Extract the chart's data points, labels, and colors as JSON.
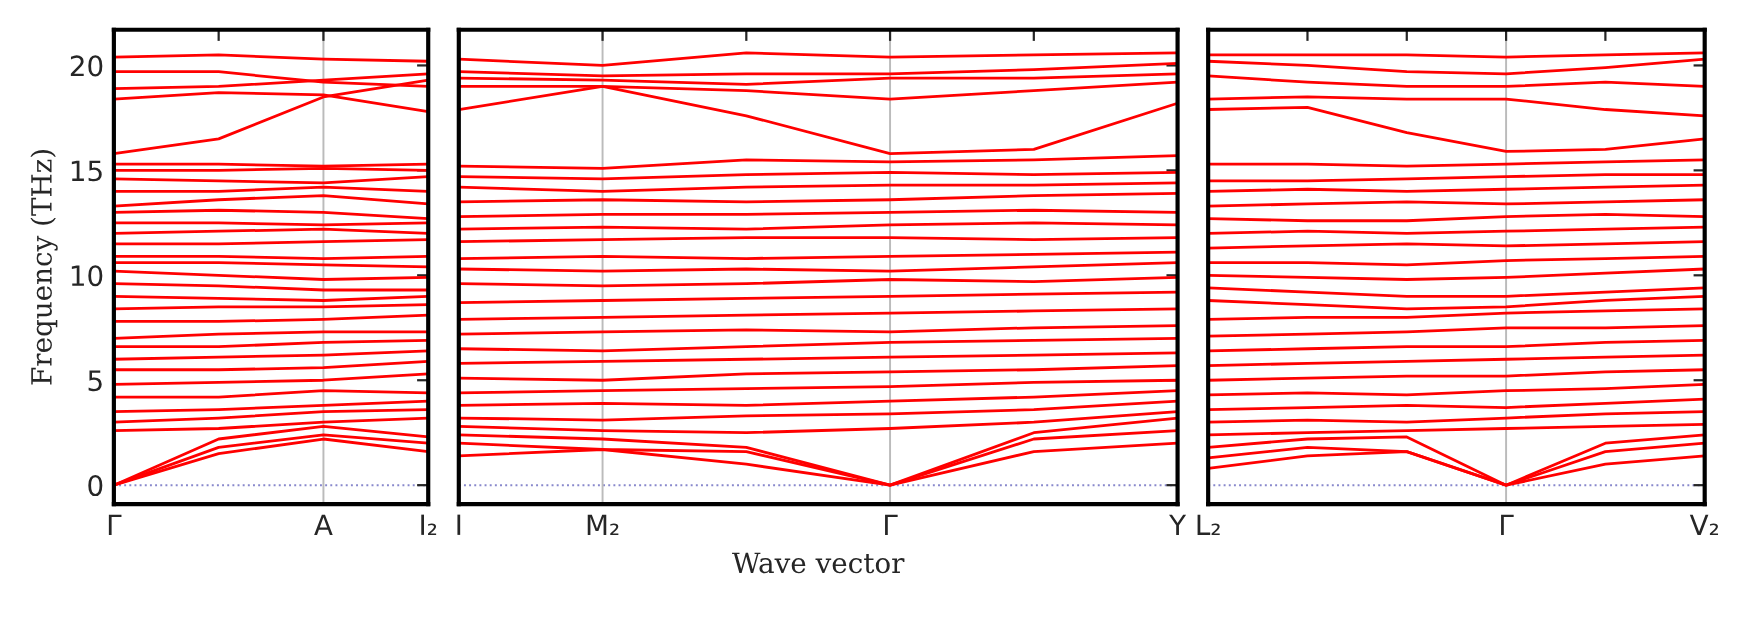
{
  "chart_data": [
    {
      "type": "line",
      "ylabel": "Frequency (THz)",
      "categories": [
        "Γ",
        null,
        "A",
        "I₂"
      ],
      "ylim": [
        -0.9,
        21.7
      ],
      "yticks": [
        0,
        5,
        10,
        15,
        20
      ],
      "line_style": "solid",
      "marker": "none",
      "ref_lines": [
        {
          "axis": "y",
          "value": 0,
          "color": "#8888cc",
          "line_style": "dotted"
        },
        {
          "axis": "x",
          "value": "A",
          "color": "#bbbbbb",
          "line_style": "solid"
        }
      ],
      "series": [
        {
          "color": "#ff0000",
          "values": [
            0,
            1.5,
            2.2,
            1.6
          ]
        },
        {
          "color": "#ff0000",
          "values": [
            0,
            1.8,
            2.4,
            2.0
          ]
        },
        {
          "color": "#ff0000",
          "values": [
            0,
            2.2,
            2.8,
            2.3
          ]
        },
        {
          "color": "#ff0000",
          "values": [
            2.6,
            2.7,
            3.0,
            3.2
          ]
        },
        {
          "color": "#ff0000",
          "values": [
            3.0,
            3.2,
            3.5,
            3.6
          ]
        },
        {
          "color": "#ff0000",
          "values": [
            3.5,
            3.6,
            3.8,
            4.0
          ]
        },
        {
          "color": "#ff0000",
          "values": [
            4.2,
            4.2,
            4.5,
            4.4
          ]
        },
        {
          "color": "#ff0000",
          "values": [
            4.8,
            4.9,
            5.0,
            5.3
          ]
        },
        {
          "color": "#ff0000",
          "values": [
            5.5,
            5.5,
            5.6,
            5.9
          ]
        },
        {
          "color": "#ff0000",
          "values": [
            6.0,
            6.1,
            6.2,
            6.4
          ]
        },
        {
          "color": "#ff0000",
          "values": [
            6.6,
            6.6,
            6.8,
            6.9
          ]
        },
        {
          "color": "#ff0000",
          "values": [
            7.0,
            7.2,
            7.3,
            7.3
          ]
        },
        {
          "color": "#ff0000",
          "values": [
            7.8,
            7.8,
            7.9,
            8.1
          ]
        },
        {
          "color": "#ff0000",
          "values": [
            8.4,
            8.5,
            8.5,
            8.6
          ]
        },
        {
          "color": "#ff0000",
          "values": [
            9.0,
            8.9,
            8.8,
            9.0
          ]
        },
        {
          "color": "#ff0000",
          "values": [
            9.6,
            9.5,
            9.3,
            9.3
          ]
        },
        {
          "color": "#ff0000",
          "values": [
            10.2,
            10.0,
            9.8,
            9.9
          ]
        },
        {
          "color": "#ff0000",
          "values": [
            10.6,
            10.6,
            10.5,
            10.4
          ]
        },
        {
          "color": "#ff0000",
          "values": [
            10.9,
            10.9,
            10.8,
            10.9
          ]
        },
        {
          "color": "#ff0000",
          "values": [
            11.5,
            11.5,
            11.6,
            11.7
          ]
        },
        {
          "color": "#ff0000",
          "values": [
            12.0,
            12.1,
            12.2,
            12.0
          ]
        },
        {
          "color": "#ff0000",
          "values": [
            12.5,
            12.5,
            12.4,
            12.5
          ]
        },
        {
          "color": "#ff0000",
          "values": [
            13.0,
            13.1,
            13.0,
            12.7
          ]
        },
        {
          "color": "#ff0000",
          "values": [
            13.3,
            13.6,
            13.8,
            13.4
          ]
        },
        {
          "color": "#ff0000",
          "values": [
            14.0,
            14.0,
            14.2,
            14.0
          ]
        },
        {
          "color": "#ff0000",
          "values": [
            14.6,
            14.5,
            14.4,
            14.7
          ]
        },
        {
          "color": "#ff0000",
          "values": [
            15.0,
            15.0,
            15.1,
            15.0
          ]
        },
        {
          "color": "#ff0000",
          "values": [
            15.3,
            15.3,
            15.2,
            15.3
          ]
        },
        {
          "color": "#ff0000",
          "values": [
            15.8,
            16.5,
            18.5,
            19.3
          ]
        },
        {
          "color": "#ff0000",
          "values": [
            18.4,
            18.7,
            18.6,
            17.8
          ]
        },
        {
          "color": "#ff0000",
          "values": [
            18.9,
            19.0,
            19.3,
            19.6
          ]
        },
        {
          "color": "#ff0000",
          "values": [
            19.7,
            19.7,
            19.2,
            19.0
          ]
        },
        {
          "color": "#ff0000",
          "values": [
            20.4,
            20.5,
            20.3,
            20.2
          ]
        }
      ]
    },
    {
      "type": "line",
      "xlabel": "Wave vector",
      "categories": [
        "I",
        "M₂",
        null,
        "Γ",
        null,
        "Y"
      ],
      "ylim": [
        -0.9,
        21.7
      ],
      "tick_labels": "x",
      "line_style": "solid",
      "marker": "none",
      "ref_lines": [
        {
          "axis": "y",
          "value": 0,
          "color": "#8888cc",
          "line_style": "dotted"
        },
        {
          "axis": "x",
          "value": "M₂",
          "color": "#bbbbbb",
          "line_style": "solid"
        },
        {
          "axis": "x",
          "value": "Γ",
          "color": "#bbbbbb",
          "line_style": "solid"
        }
      ],
      "series": [
        {
          "color": "#ff0000",
          "values": [
            1.4,
            1.7,
            1.0,
            0,
            1.6,
            2.0
          ]
        },
        {
          "color": "#ff0000",
          "values": [
            2.0,
            1.7,
            1.6,
            0,
            2.2,
            2.6
          ]
        },
        {
          "color": "#ff0000",
          "values": [
            2.4,
            2.2,
            1.8,
            0,
            2.5,
            3.2
          ]
        },
        {
          "color": "#ff0000",
          "values": [
            2.8,
            2.6,
            2.5,
            2.7,
            3.0,
            3.5
          ]
        },
        {
          "color": "#ff0000",
          "values": [
            3.2,
            3.1,
            3.3,
            3.4,
            3.6,
            4.0
          ]
        },
        {
          "color": "#ff0000",
          "values": [
            3.8,
            3.9,
            3.8,
            4.0,
            4.2,
            4.5
          ]
        },
        {
          "color": "#ff0000",
          "values": [
            4.4,
            4.5,
            4.6,
            4.7,
            4.9,
            5.0
          ]
        },
        {
          "color": "#ff0000",
          "values": [
            5.1,
            5.0,
            5.3,
            5.4,
            5.5,
            5.7
          ]
        },
        {
          "color": "#ff0000",
          "values": [
            5.8,
            5.9,
            6.0,
            6.1,
            6.2,
            6.3
          ]
        },
        {
          "color": "#ff0000",
          "values": [
            6.5,
            6.4,
            6.6,
            6.8,
            6.9,
            7.0
          ]
        },
        {
          "color": "#ff0000",
          "values": [
            7.2,
            7.3,
            7.4,
            7.3,
            7.5,
            7.6
          ]
        },
        {
          "color": "#ff0000",
          "values": [
            7.9,
            8.0,
            8.1,
            8.2,
            8.3,
            8.4
          ]
        },
        {
          "color": "#ff0000",
          "values": [
            8.7,
            8.8,
            8.9,
            9.0,
            9.1,
            9.2
          ]
        },
        {
          "color": "#ff0000",
          "values": [
            9.6,
            9.5,
            9.6,
            9.8,
            9.7,
            9.9
          ]
        },
        {
          "color": "#ff0000",
          "values": [
            10.3,
            10.2,
            10.3,
            10.2,
            10.4,
            10.6
          ]
        },
        {
          "color": "#ff0000",
          "values": [
            10.8,
            10.9,
            10.8,
            10.9,
            11.0,
            11.1
          ]
        },
        {
          "color": "#ff0000",
          "values": [
            11.6,
            11.7,
            11.8,
            11.8,
            11.7,
            11.8
          ]
        },
        {
          "color": "#ff0000",
          "values": [
            12.2,
            12.3,
            12.2,
            12.4,
            12.5,
            12.4
          ]
        },
        {
          "color": "#ff0000",
          "values": [
            12.8,
            12.9,
            12.9,
            13.0,
            13.1,
            13.0
          ]
        },
        {
          "color": "#ff0000",
          "values": [
            13.5,
            13.6,
            13.5,
            13.6,
            13.8,
            13.9
          ]
        },
        {
          "color": "#ff0000",
          "values": [
            14.2,
            14.0,
            14.2,
            14.3,
            14.3,
            14.4
          ]
        },
        {
          "color": "#ff0000",
          "values": [
            14.7,
            14.6,
            14.8,
            14.9,
            14.8,
            14.9
          ]
        },
        {
          "color": "#ff0000",
          "values": [
            15.2,
            15.1,
            15.5,
            15.4,
            15.5,
            15.7
          ]
        },
        {
          "color": "#ff0000",
          "values": [
            17.9,
            19.0,
            17.6,
            15.8,
            16.0,
            18.2
          ]
        },
        {
          "color": "#ff0000",
          "values": [
            19.0,
            19.0,
            18.8,
            18.4,
            18.8,
            19.2
          ]
        },
        {
          "color": "#ff0000",
          "values": [
            19.4,
            19.3,
            19.1,
            19.4,
            19.4,
            19.6
          ]
        },
        {
          "color": "#ff0000",
          "values": [
            19.7,
            19.5,
            19.6,
            19.6,
            19.8,
            20.1
          ]
        },
        {
          "color": "#ff0000",
          "values": [
            20.3,
            20.0,
            20.6,
            20.4,
            20.5,
            20.6
          ]
        }
      ]
    },
    {
      "type": "line",
      "categories": [
        "L₂",
        null,
        null,
        "Γ",
        null,
        "V₂"
      ],
      "ylim": [
        -0.9,
        21.7
      ],
      "tick_labels": "x",
      "line_style": "solid",
      "marker": "none",
      "ref_lines": [
        {
          "axis": "y",
          "value": 0,
          "color": "#8888cc",
          "line_style": "dotted"
        },
        {
          "axis": "x",
          "value": "Γ",
          "color": "#bbbbbb",
          "line_style": "solid"
        }
      ],
      "series": [
        {
          "color": "#ff0000",
          "values": [
            0.8,
            1.4,
            1.6,
            0,
            1.0,
            1.4
          ]
        },
        {
          "color": "#ff0000",
          "values": [
            1.3,
            1.8,
            1.6,
            0,
            1.6,
            2.0
          ]
        },
        {
          "color": "#ff0000",
          "values": [
            1.8,
            2.2,
            2.3,
            0,
            2.0,
            2.4
          ]
        },
        {
          "color": "#ff0000",
          "values": [
            2.4,
            2.5,
            2.6,
            2.7,
            2.8,
            2.9
          ]
        },
        {
          "color": "#ff0000",
          "values": [
            3.0,
            3.1,
            3.0,
            3.2,
            3.4,
            3.5
          ]
        },
        {
          "color": "#ff0000",
          "values": [
            3.6,
            3.7,
            3.8,
            3.7,
            3.9,
            4.1
          ]
        },
        {
          "color": "#ff0000",
          "values": [
            4.3,
            4.4,
            4.3,
            4.5,
            4.6,
            4.8
          ]
        },
        {
          "color": "#ff0000",
          "values": [
            5.0,
            5.1,
            5.2,
            5.2,
            5.4,
            5.5
          ]
        },
        {
          "color": "#ff0000",
          "values": [
            5.7,
            5.8,
            5.9,
            6.0,
            6.1,
            6.2
          ]
        },
        {
          "color": "#ff0000",
          "values": [
            6.4,
            6.5,
            6.6,
            6.6,
            6.8,
            6.9
          ]
        },
        {
          "color": "#ff0000",
          "values": [
            7.1,
            7.2,
            7.3,
            7.5,
            7.5,
            7.6
          ]
        },
        {
          "color": "#ff0000",
          "values": [
            7.9,
            8.0,
            8.0,
            8.2,
            8.3,
            8.4
          ]
        },
        {
          "color": "#ff0000",
          "values": [
            8.8,
            8.6,
            8.4,
            8.5,
            8.8,
            9.0
          ]
        },
        {
          "color": "#ff0000",
          "values": [
            9.4,
            9.2,
            9.0,
            9.0,
            9.2,
            9.4
          ]
        },
        {
          "color": "#ff0000",
          "values": [
            10.0,
            9.9,
            9.8,
            9.9,
            10.1,
            10.3
          ]
        },
        {
          "color": "#ff0000",
          "values": [
            10.6,
            10.6,
            10.5,
            10.7,
            10.8,
            10.9
          ]
        },
        {
          "color": "#ff0000",
          "values": [
            11.3,
            11.4,
            11.5,
            11.4,
            11.5,
            11.6
          ]
        },
        {
          "color": "#ff0000",
          "values": [
            12.0,
            12.1,
            12.0,
            12.1,
            12.2,
            12.3
          ]
        },
        {
          "color": "#ff0000",
          "values": [
            12.7,
            12.6,
            12.6,
            12.8,
            12.9,
            12.8
          ]
        },
        {
          "color": "#ff0000",
          "values": [
            13.3,
            13.4,
            13.5,
            13.4,
            13.5,
            13.6
          ]
        },
        {
          "color": "#ff0000",
          "values": [
            14.0,
            14.1,
            14.0,
            14.1,
            14.2,
            14.3
          ]
        },
        {
          "color": "#ff0000",
          "values": [
            14.5,
            14.5,
            14.6,
            14.7,
            14.8,
            14.8
          ]
        },
        {
          "color": "#ff0000",
          "values": [
            15.3,
            15.3,
            15.2,
            15.3,
            15.4,
            15.5
          ]
        },
        {
          "color": "#ff0000",
          "values": [
            17.9,
            18.0,
            16.8,
            15.9,
            16.0,
            16.5
          ]
        },
        {
          "color": "#ff0000",
          "values": [
            18.4,
            18.5,
            18.4,
            18.4,
            17.9,
            17.6
          ]
        },
        {
          "color": "#ff0000",
          "values": [
            19.5,
            19.2,
            19.0,
            19.0,
            19.2,
            19.0
          ]
        },
        {
          "color": "#ff0000",
          "values": [
            20.2,
            20.0,
            19.7,
            19.6,
            19.9,
            20.3
          ]
        },
        {
          "color": "#ff0000",
          "values": [
            20.5,
            20.5,
            20.5,
            20.4,
            20.5,
            20.6
          ]
        }
      ]
    }
  ]
}
